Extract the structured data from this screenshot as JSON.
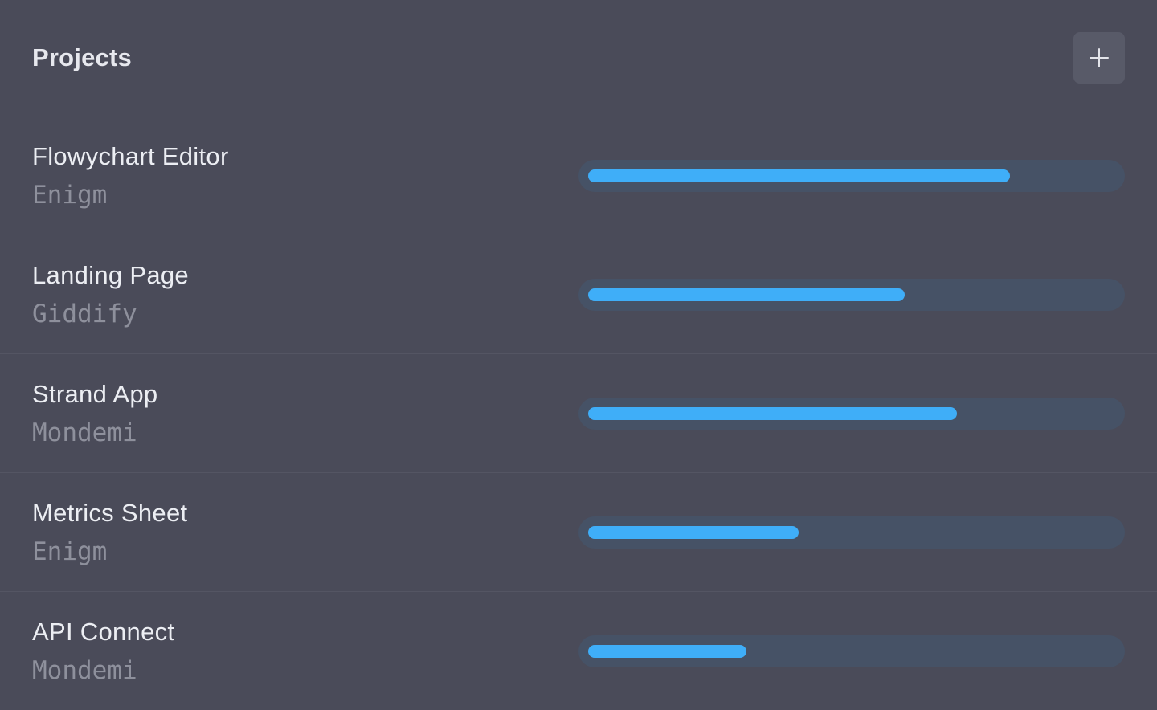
{
  "panel": {
    "title": "Projects",
    "add_button_icon": "plus-icon"
  },
  "colors": {
    "background": "#4a4b59",
    "progress_track": "#465266",
    "progress_fill": "#3faef8"
  },
  "projects": [
    {
      "name": "Flowychart Editor",
      "client": "Enigm",
      "progress": 0.8
    },
    {
      "name": "Landing Page",
      "client": "Giddify",
      "progress": 0.6
    },
    {
      "name": "Strand App",
      "client": "Mondemi",
      "progress": 0.7
    },
    {
      "name": "Metrics Sheet",
      "client": "Enigm",
      "progress": 0.4
    },
    {
      "name": "API Connect",
      "client": "Mondemi",
      "progress": 0.3
    }
  ]
}
